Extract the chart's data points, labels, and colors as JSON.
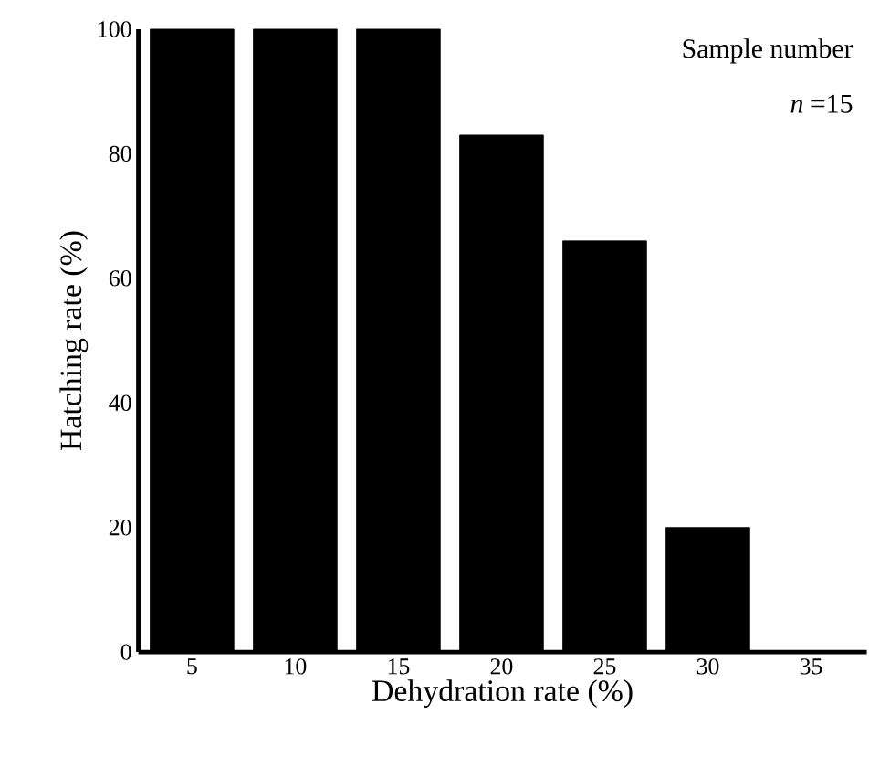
{
  "chart_data": {
    "type": "bar",
    "xlabel": "Dehydration rate (%)",
    "ylabel": "Hatching rate (%)",
    "categories": [
      "5",
      "10",
      "15",
      "20",
      "25",
      "30",
      "35"
    ],
    "values": [
      100,
      100,
      100,
      83,
      66,
      20,
      0
    ],
    "color": "#000000",
    "ylim": [
      0,
      100
    ],
    "yticks": [
      0,
      20,
      40,
      60,
      80,
      100
    ],
    "annotations": [
      "Sample number",
      "*n* =15"
    ]
  }
}
